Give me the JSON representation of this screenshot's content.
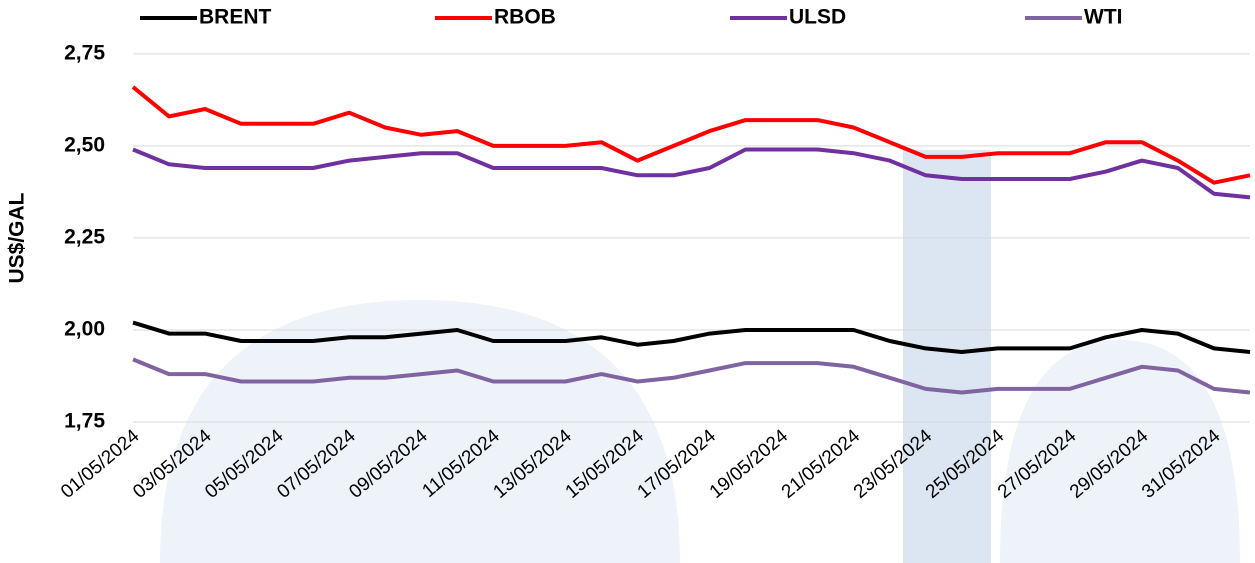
{
  "chart_data": {
    "type": "line",
    "y_label": "US$/GAL",
    "categories": [
      "01/05/2024",
      null,
      "03/05/2024",
      null,
      "05/05/2024",
      null,
      "07/05/2024",
      null,
      "09/05/2024",
      null,
      "11/05/2024",
      null,
      "13/05/2024",
      null,
      "15/05/2024",
      null,
      "17/05/2024",
      null,
      "19/05/2024",
      null,
      "21/05/2024",
      null,
      "23/05/2024",
      null,
      "25/05/2024",
      null,
      "27/05/2024",
      null,
      "29/05/2024",
      null,
      "31/05/2024",
      null
    ],
    "series": [
      {
        "name": "BRENT",
        "color": "#000000",
        "values": [
          2.02,
          1.99,
          1.99,
          1.97,
          1.97,
          1.97,
          1.98,
          1.98,
          1.99,
          2.0,
          1.97,
          1.97,
          1.97,
          1.98,
          1.96,
          1.97,
          1.99,
          2.0,
          2.0,
          2.0,
          2.0,
          1.97,
          1.95,
          1.94,
          1.95,
          1.95,
          1.95,
          1.98,
          2.0,
          1.99,
          1.95,
          1.94
        ]
      },
      {
        "name": "RBOB",
        "color": "#ff0000",
        "values": [
          2.66,
          2.58,
          2.6,
          2.56,
          2.56,
          2.56,
          2.59,
          2.55,
          2.53,
          2.54,
          2.5,
          2.5,
          2.5,
          2.51,
          2.46,
          2.5,
          2.54,
          2.57,
          2.57,
          2.57,
          2.55,
          2.51,
          2.47,
          2.47,
          2.48,
          2.48,
          2.48,
          2.51,
          2.51,
          2.46,
          2.4,
          2.42
        ]
      },
      {
        "name": "ULSD",
        "color": "#7030a0",
        "values": [
          2.49,
          2.45,
          2.44,
          2.44,
          2.44,
          2.44,
          2.46,
          2.47,
          2.48,
          2.48,
          2.44,
          2.44,
          2.44,
          2.44,
          2.42,
          2.42,
          2.44,
          2.49,
          2.49,
          2.49,
          2.48,
          2.46,
          2.42,
          2.41,
          2.41,
          2.41,
          2.41,
          2.43,
          2.46,
          2.44,
          2.37,
          2.36
        ]
      },
      {
        "name": "WTI",
        "color": "#8064a2",
        "values": [
          1.92,
          1.88,
          1.88,
          1.86,
          1.86,
          1.86,
          1.87,
          1.87,
          1.88,
          1.89,
          1.86,
          1.86,
          1.86,
          1.88,
          1.86,
          1.87,
          1.89,
          1.91,
          1.91,
          1.91,
          1.9,
          1.87,
          1.84,
          1.83,
          1.84,
          1.84,
          1.84,
          1.87,
          1.9,
          1.89,
          1.84,
          1.83
        ]
      }
    ],
    "ylim": [
      1.75,
      2.85
    ],
    "yticks": [
      {
        "value": 1.75,
        "label": "1,75"
      },
      {
        "value": 2.0,
        "label": "2,00"
      },
      {
        "value": 2.25,
        "label": "2,25"
      },
      {
        "value": 2.5,
        "label": "2,50"
      },
      {
        "value": 2.75,
        "label": "2,75"
      }
    ],
    "grid": true,
    "legend": "top"
  }
}
